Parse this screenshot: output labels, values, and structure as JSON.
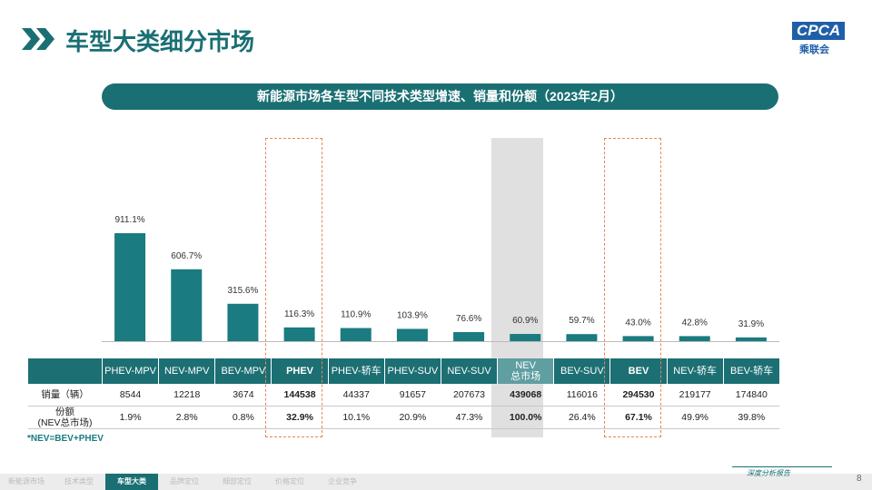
{
  "header": {
    "title": "车型大类细分市场",
    "logo": "CPCA",
    "logo_sub": "乘联会"
  },
  "chart_data": {
    "type": "bar",
    "title": "新能源市场各车型不同技术类型增速、销量和份额（2023年2月）",
    "categories": [
      "PHEV-MPV",
      "NEV-MPV",
      "BEV-MPV",
      "PHEV",
      "PHEV-轿车",
      "PHEV-SUV",
      "NEV-SUV",
      "NEV\n总市场",
      "BEV-SUV",
      "BEV",
      "NEV-轿车",
      "BEV-轿车"
    ],
    "values": [
      911.1,
      606.7,
      315.6,
      116.3,
      110.9,
      103.9,
      76.6,
      60.9,
      59.7,
      43.0,
      42.8,
      31.9
    ],
    "value_labels": [
      "911.1%",
      "606.7%",
      "315.6%",
      "116.3%",
      "110.9%",
      "103.9%",
      "76.6%",
      "60.9%",
      "59.7%",
      "43.0%",
      "42.8%",
      "31.9%"
    ],
    "color": "#1a7b80",
    "highlight_columns": [
      3,
      9
    ],
    "total_column": 7
  },
  "table": {
    "row_headers": [
      "销量（辆）",
      "份额\n(NEV总市场)"
    ],
    "rows": [
      [
        "8544",
        "12218",
        "3674",
        "144538",
        "44337",
        "91657",
        "207673",
        "439068",
        "116016",
        "294530",
        "219177",
        "174840"
      ],
      [
        "1.9%",
        "2.8%",
        "0.8%",
        "32.9%",
        "10.1%",
        "20.9%",
        "47.3%",
        "100.0%",
        "26.4%",
        "67.1%",
        "49.9%",
        "39.8%"
      ]
    ],
    "note": "*NEV=BEV+PHEV"
  },
  "footer": {
    "tabs": [
      "新能源市场",
      "技术类型",
      "车型大类",
      "品牌定位",
      "细部定位",
      "价格定位",
      "企业竞争"
    ],
    "active": 2,
    "tagline": "深度分析报告",
    "page": "8"
  }
}
